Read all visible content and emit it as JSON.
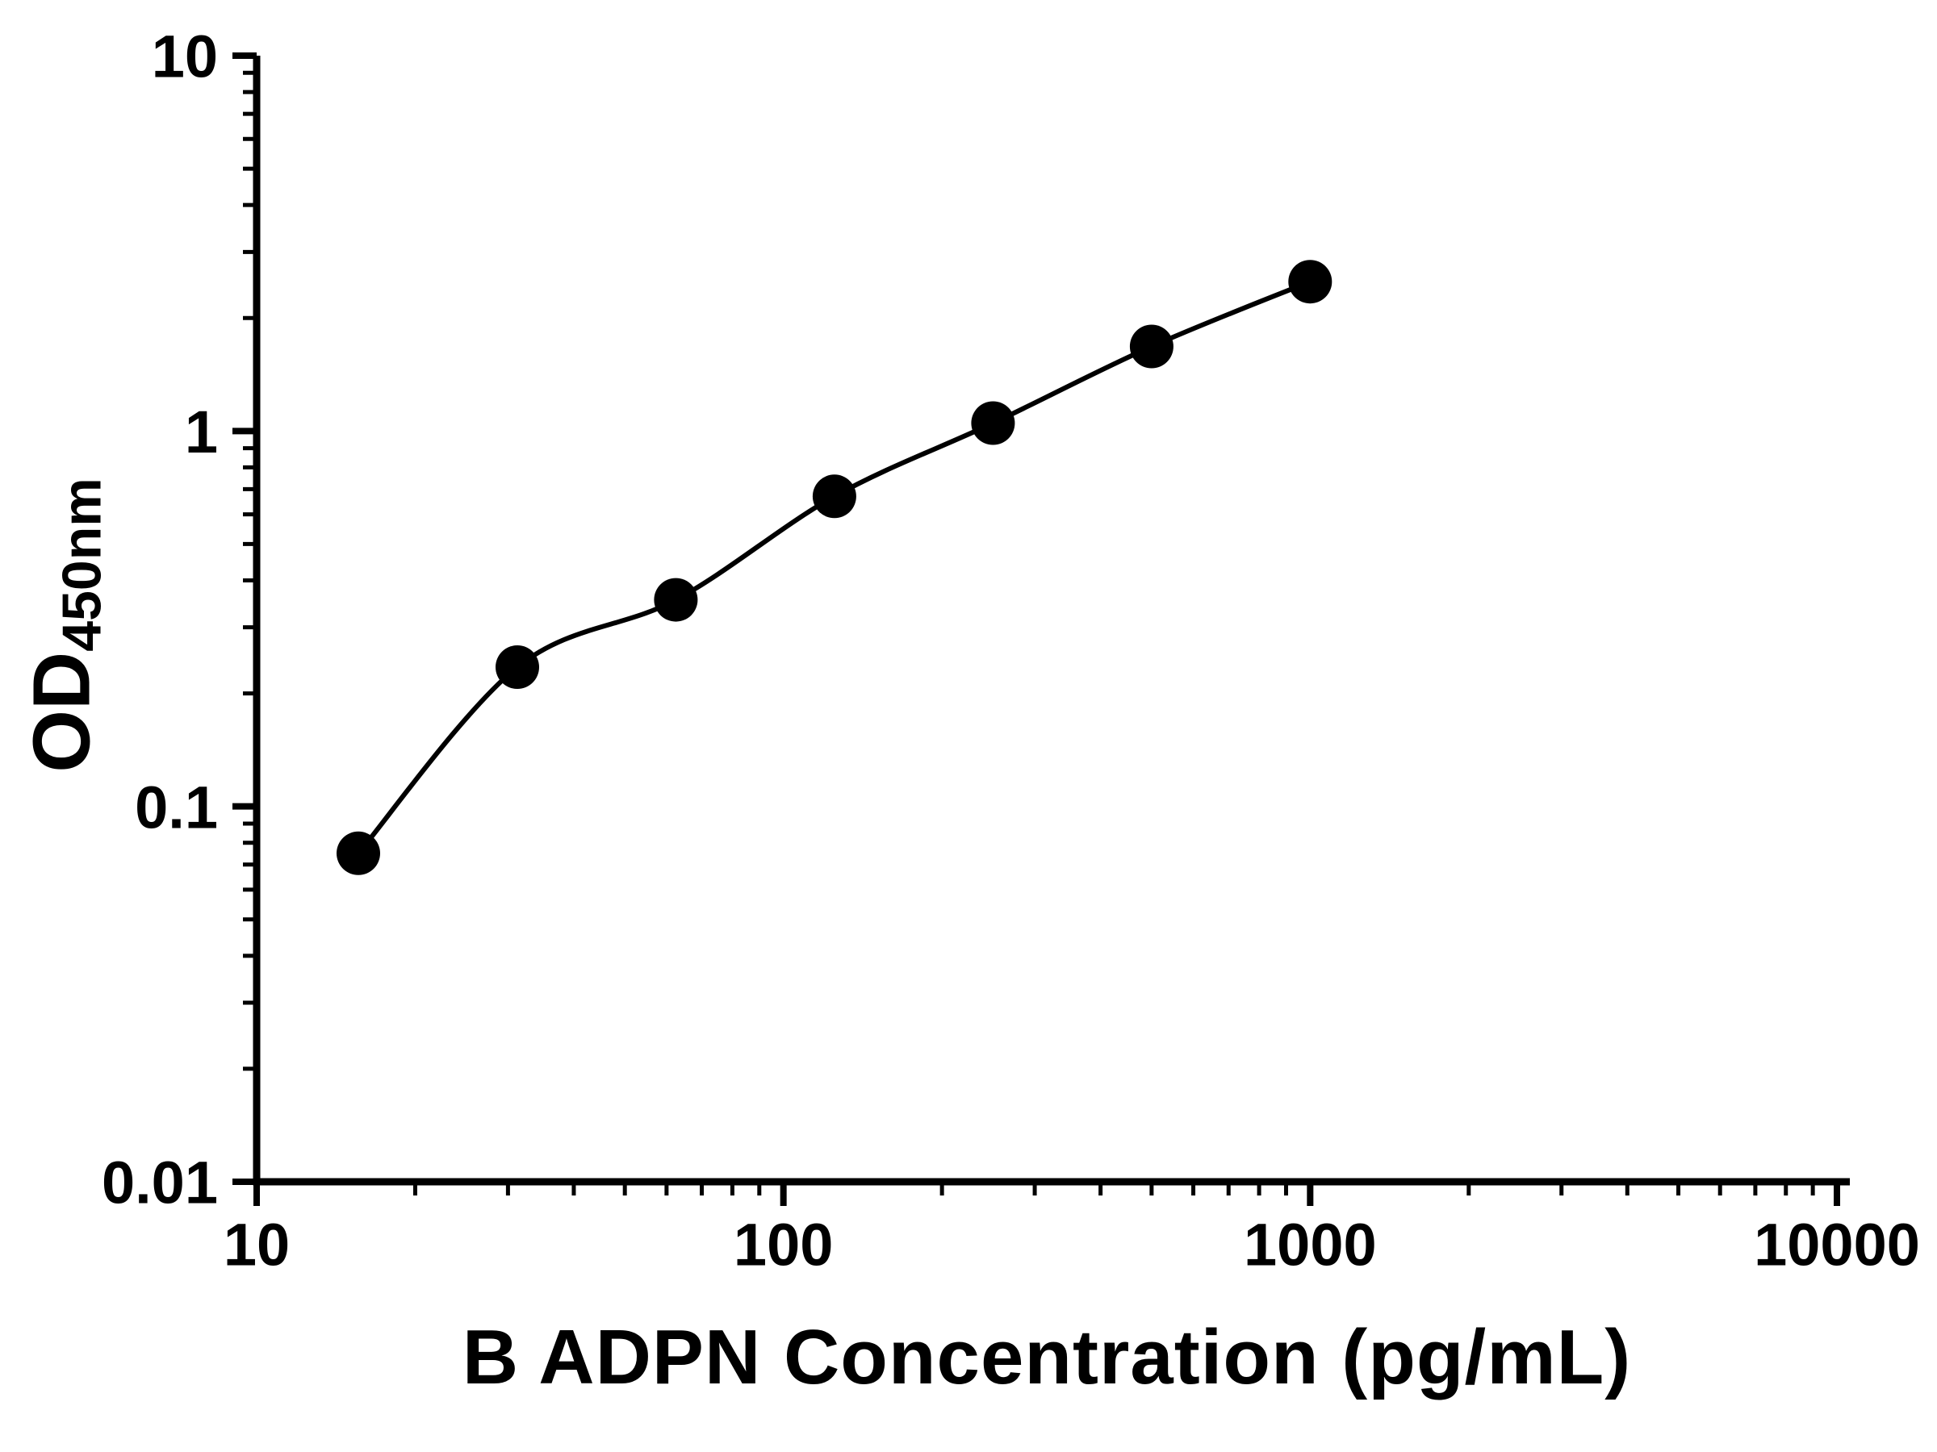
{
  "chart_data": {
    "type": "scatter",
    "title": "",
    "xlabel": "B ADPN Concentration (pg/mL)",
    "ylabel": {
      "main": "OD",
      "sub": "450nm"
    },
    "x_scale": "log",
    "y_scale": "log",
    "xlim": [
      10,
      10000
    ],
    "ylim": [
      0.01,
      10
    ],
    "grid": false,
    "legend": "none",
    "x_ticks": [
      {
        "value": 10,
        "label": "10"
      },
      {
        "value": 100,
        "label": "100"
      },
      {
        "value": 1000,
        "label": "1000"
      },
      {
        "value": 10000,
        "label": "10000"
      }
    ],
    "y_ticks": [
      {
        "value": 0.01,
        "label": "0.01"
      },
      {
        "value": 0.1,
        "label": "0.1"
      },
      {
        "value": 1,
        "label": "1"
      },
      {
        "value": 10,
        "label": "10"
      }
    ],
    "series": [
      {
        "marker": "circle",
        "curve": "smooth-fit",
        "points": [
          {
            "x": 15.6,
            "y": 0.075
          },
          {
            "x": 31.25,
            "y": 0.235
          },
          {
            "x": 62.5,
            "y": 0.355
          },
          {
            "x": 125,
            "y": 0.67
          },
          {
            "x": 250,
            "y": 1.05
          },
          {
            "x": 500,
            "y": 1.68
          },
          {
            "x": 1000,
            "y": 2.5
          }
        ]
      }
    ],
    "colors": {
      "axis": "#000000",
      "marker": "#000000",
      "line": "#000000",
      "text": "#000000",
      "background": "#ffffff"
    }
  }
}
